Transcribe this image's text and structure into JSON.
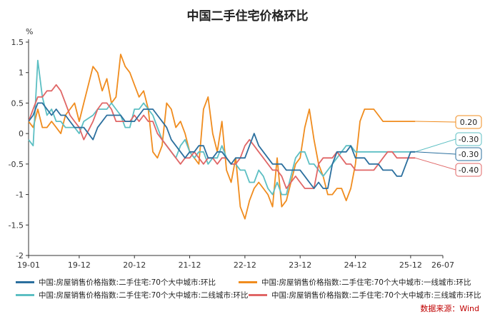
{
  "chart_data": {
    "type": "line",
    "title": "中国二手住宅价格环比",
    "y_unit": "%",
    "ylim": [
      -2,
      1.5
    ],
    "y_ticks": [
      -2,
      -1.5,
      -1,
      -0.5,
      0,
      0.5,
      1,
      1.5
    ],
    "y_tick_labels": [
      "-2",
      "-1.5",
      "-1",
      "-0.5",
      "0",
      "0.5",
      "1",
      "1.5"
    ],
    "x_ticks": [
      "19-01",
      "19-12",
      "20-12",
      "21-12",
      "22-12",
      "23-12",
      "24-12",
      "25-12",
      "26-07"
    ],
    "grid": false,
    "legend_position": "bottom",
    "series": [
      {
        "name": "中国:房屋销售价格指数:二手住宅:70个大中城市:环比",
        "color": "#2b6f9e",
        "end_label": "-0.30",
        "x": [
          "2019-01",
          "2019-02",
          "2019-03",
          "2019-04",
          "2019-05",
          "2019-06",
          "2019-07",
          "2019-08",
          "2019-09",
          "2019-10",
          "2019-11",
          "2019-12",
          "2020-01",
          "2020-03",
          "2020-04",
          "2020-05",
          "2020-06",
          "2020-07",
          "2020-08",
          "2020-09",
          "2020-10",
          "2020-11",
          "2020-12",
          "2021-01",
          "2021-02",
          "2021-03",
          "2021-04",
          "2021-05",
          "2021-06",
          "2021-07",
          "2021-08",
          "2021-09",
          "2021-10",
          "2021-11",
          "2021-12",
          "2022-01",
          "2022-02",
          "2022-03",
          "2022-04",
          "2022-05",
          "2022-06",
          "2022-07",
          "2022-08",
          "2022-09",
          "2022-10",
          "2022-11",
          "2022-12",
          "2023-01",
          "2023-02",
          "2023-03",
          "2023-04",
          "2023-05",
          "2023-06",
          "2023-07",
          "2023-08",
          "2023-09",
          "2023-10",
          "2023-11",
          "2023-12",
          "2024-01",
          "2024-02",
          "2024-03",
          "2024-04",
          "2024-05",
          "2024-06",
          "2024-07",
          "2024-08",
          "2024-09",
          "2024-10",
          "2024-11",
          "2024-12",
          "2025-01",
          "2025-02",
          "2025-03",
          "2025-04",
          "2025-05",
          "2025-06",
          "2025-07",
          "2025-08",
          "2025-09",
          "2025-10",
          "2025-11",
          "2025-12",
          "2026-01"
        ],
        "y": [
          0.2,
          0.3,
          0.5,
          0.5,
          0.4,
          0.3,
          0.4,
          0.3,
          0.3,
          0.2,
          0.1,
          0.1,
          0.1,
          -0.1,
          0.1,
          0.2,
          0.3,
          0.3,
          0.3,
          0.3,
          0.2,
          0.2,
          0.2,
          0.3,
          0.4,
          0.4,
          0.4,
          0.3,
          0.2,
          0.1,
          -0.1,
          -0.2,
          -0.3,
          -0.4,
          -0.3,
          -0.3,
          -0.2,
          -0.2,
          -0.4,
          -0.4,
          -0.3,
          -0.3,
          -0.4,
          -0.5,
          -0.4,
          -0.4,
          -0.4,
          -0.2,
          0.0,
          -0.2,
          -0.3,
          -0.4,
          -0.5,
          -0.5,
          -0.5,
          -0.6,
          -0.6,
          -0.6,
          -0.6,
          -0.7,
          -0.8,
          -0.9,
          -0.8,
          -0.9,
          -0.9,
          -0.5,
          -0.3,
          -0.3,
          -0.3,
          -0.2,
          -0.4,
          -0.4,
          -0.4,
          -0.5,
          -0.5,
          -0.5,
          -0.6,
          -0.6,
          -0.6,
          -0.7,
          -0.7,
          -0.5,
          -0.3,
          -0.3
        ]
      },
      {
        "name": "中国:房屋销售价格指数:二手住宅:70个大中城市:一线城市:环比",
        "color": "#f08c1e",
        "end_label": "0.20",
        "x": [
          "2019-01",
          "2019-02",
          "2019-03",
          "2019-04",
          "2019-05",
          "2019-06",
          "2019-07",
          "2019-08",
          "2019-09",
          "2019-10",
          "2019-11",
          "2019-12",
          "2020-01",
          "2020-03",
          "2020-04",
          "2020-05",
          "2020-06",
          "2020-07",
          "2020-08",
          "2020-09",
          "2020-10",
          "2020-11",
          "2020-12",
          "2021-01",
          "2021-02",
          "2021-03",
          "2021-04",
          "2021-05",
          "2021-06",
          "2021-07",
          "2021-08",
          "2021-09",
          "2021-10",
          "2021-11",
          "2021-12",
          "2022-01",
          "2022-02",
          "2022-03",
          "2022-04",
          "2022-05",
          "2022-06",
          "2022-07",
          "2022-08",
          "2022-09",
          "2022-10",
          "2022-11",
          "2022-12",
          "2023-01",
          "2023-02",
          "2023-03",
          "2023-04",
          "2023-05",
          "2023-06",
          "2023-07",
          "2023-08",
          "2023-09",
          "2023-10",
          "2023-11",
          "2023-12",
          "2024-01",
          "2024-02",
          "2024-03",
          "2024-04",
          "2024-05",
          "2024-06",
          "2024-07",
          "2024-08",
          "2024-09",
          "2024-10",
          "2024-11",
          "2024-12",
          "2025-01",
          "2025-02",
          "2025-03",
          "2025-04",
          "2025-05",
          "2025-06",
          "2025-07",
          "2025-08",
          "2025-09",
          "2025-10",
          "2025-11",
          "2025-12",
          "2026-01"
        ],
        "y": [
          0.2,
          0.1,
          0.4,
          0.1,
          0.1,
          0.2,
          0.1,
          0.0,
          0.3,
          0.4,
          0.5,
          0.2,
          0.5,
          1.1,
          1.0,
          0.7,
          0.9,
          0.5,
          0.6,
          1.3,
          1.1,
          1.0,
          0.8,
          0.6,
          0.7,
          0.4,
          -0.3,
          -0.4,
          -0.2,
          0.5,
          0.4,
          0.1,
          0.2,
          0.0,
          -0.3,
          -0.4,
          -0.5,
          0.4,
          0.6,
          0.0,
          -0.3,
          0.2,
          -0.6,
          -0.8,
          -0.4,
          -1.2,
          -1.4,
          -1.1,
          -0.9,
          -0.8,
          -0.9,
          -1.0,
          -1.2,
          -0.4,
          -1.2,
          -1.1,
          -0.8,
          -0.5,
          -0.4,
          0.1,
          0.4,
          -0.1,
          -0.5,
          -0.7,
          -1.0,
          -1.0,
          -0.9,
          -0.9,
          -1.1,
          -0.9,
          -0.5,
          0.2,
          0.4,
          0.4,
          0.4,
          0.3,
          0.2,
          0.2,
          0.2,
          0.2,
          0.2,
          0.2,
          0.2,
          0.2
        ]
      },
      {
        "name": "中国:房屋销售价格指数:二手住宅:70个大中城市:二线城市:环比",
        "color": "#5cbfc3",
        "end_label": "-0.30",
        "x": [
          "2019-01",
          "2019-02",
          "2019-03",
          "2019-04",
          "2019-05",
          "2019-06",
          "2019-07",
          "2019-08",
          "2019-09",
          "2019-10",
          "2019-11",
          "2019-12",
          "2020-01",
          "2020-03",
          "2020-04",
          "2020-05",
          "2020-06",
          "2020-07",
          "2020-08",
          "2020-09",
          "2020-10",
          "2020-11",
          "2020-12",
          "2021-01",
          "2021-02",
          "2021-03",
          "2021-04",
          "2021-05",
          "2021-06",
          "2021-07",
          "2021-08",
          "2021-09",
          "2021-10",
          "2021-11",
          "2021-12",
          "2022-01",
          "2022-02",
          "2022-03",
          "2022-04",
          "2022-05",
          "2022-06",
          "2022-07",
          "2022-08",
          "2022-09",
          "2022-10",
          "2022-11",
          "2022-12",
          "2023-01",
          "2023-02",
          "2023-03",
          "2023-04",
          "2023-05",
          "2023-06",
          "2023-07",
          "2023-08",
          "2023-09",
          "2023-10",
          "2023-11",
          "2023-12",
          "2024-01",
          "2024-02",
          "2024-03",
          "2024-04",
          "2024-05",
          "2024-06",
          "2024-07",
          "2024-08",
          "2024-09",
          "2024-10",
          "2024-11",
          "2024-12",
          "2025-01",
          "2025-02",
          "2025-03",
          "2025-04",
          "2025-05",
          "2025-06",
          "2025-07",
          "2025-08",
          "2025-09",
          "2025-10",
          "2025-11",
          "2025-12",
          "2026-01"
        ],
        "y": [
          -0.1,
          -0.2,
          1.2,
          0.6,
          0.3,
          0.4,
          0.2,
          0.2,
          0.1,
          0.1,
          0.1,
          0.0,
          0.2,
          0.3,
          0.4,
          0.4,
          0.4,
          0.5,
          0.4,
          0.3,
          0.1,
          0.1,
          0.4,
          0.4,
          0.5,
          0.4,
          0.3,
          0.1,
          -0.1,
          -0.2,
          -0.3,
          -0.4,
          -0.2,
          -0.1,
          -0.3,
          -0.4,
          -0.3,
          -0.3,
          -0.5,
          -0.4,
          -0.4,
          -0.2,
          -0.4,
          -0.5,
          -0.5,
          -0.6,
          -0.6,
          -0.8,
          -0.8,
          -0.6,
          -0.7,
          -0.9,
          -1.0,
          -0.8,
          -1.0,
          -1.0,
          -0.7,
          -0.4,
          -0.3,
          -0.3,
          -0.5,
          -0.5,
          -0.6,
          -0.7,
          -0.6,
          -0.5,
          -0.4,
          -0.3,
          -0.2,
          -0.2,
          -0.3,
          -0.3,
          -0.3,
          -0.3,
          -0.3,
          -0.3,
          -0.3,
          -0.3,
          -0.3,
          -0.3,
          -0.3,
          -0.3,
          -0.3,
          -0.3
        ]
      },
      {
        "name": "中国:房屋销售价格指数:二手住宅:70个大中城市:三线城市:环比",
        "color": "#e06666",
        "end_label": "-0.40",
        "x": [
          "2019-01",
          "2019-02",
          "2019-03",
          "2019-04",
          "2019-05",
          "2019-06",
          "2019-07",
          "2019-08",
          "2019-09",
          "2019-10",
          "2019-11",
          "2019-12",
          "2020-01",
          "2020-03",
          "2020-04",
          "2020-05",
          "2020-06",
          "2020-07",
          "2020-08",
          "2020-09",
          "2020-10",
          "2020-11",
          "2020-12",
          "2021-01",
          "2021-02",
          "2021-03",
          "2021-04",
          "2021-05",
          "2021-06",
          "2021-07",
          "2021-08",
          "2021-09",
          "2021-10",
          "2021-11",
          "2021-12",
          "2022-01",
          "2022-02",
          "2022-03",
          "2022-04",
          "2022-05",
          "2022-06",
          "2022-07",
          "2022-08",
          "2022-09",
          "2022-10",
          "2022-11",
          "2022-12",
          "2023-01",
          "2023-02",
          "2023-03",
          "2023-04",
          "2023-05",
          "2023-06",
          "2023-07",
          "2023-08",
          "2023-09",
          "2023-10",
          "2023-11",
          "2023-12",
          "2024-01",
          "2024-02",
          "2024-03",
          "2024-04",
          "2024-05",
          "2024-06",
          "2024-07",
          "2024-08",
          "2024-09",
          "2024-10",
          "2024-11",
          "2024-12",
          "2025-01",
          "2025-02",
          "2025-03",
          "2025-04",
          "2025-05",
          "2025-06",
          "2025-07",
          "2025-08",
          "2025-09",
          "2025-10",
          "2025-11",
          "2025-12",
          "2026-01"
        ],
        "y": [
          0.2,
          0.4,
          0.6,
          0.6,
          0.7,
          0.7,
          0.8,
          0.7,
          0.5,
          0.3,
          0.2,
          0.1,
          -0.1,
          0.2,
          0.4,
          0.5,
          0.5,
          0.4,
          0.2,
          0.2,
          0.2,
          0.2,
          0.3,
          0.2,
          0.3,
          0.2,
          0.2,
          0.0,
          -0.1,
          -0.2,
          -0.3,
          -0.4,
          -0.5,
          -0.4,
          -0.4,
          -0.3,
          -0.4,
          -0.5,
          -0.4,
          -0.4,
          -0.5,
          -0.4,
          -0.4,
          -0.5,
          -0.5,
          -0.4,
          -0.2,
          -0.1,
          -0.2,
          -0.3,
          -0.4,
          -0.5,
          -0.6,
          -0.6,
          -0.7,
          -0.9,
          -0.8,
          -0.7,
          -0.8,
          -0.9,
          -0.9,
          -0.9,
          -0.5,
          -0.4,
          -0.4,
          -0.4,
          -0.3,
          -0.4,
          -0.5,
          -0.5,
          -0.6,
          -0.6,
          -0.6,
          -0.6,
          -0.6,
          -0.5,
          -0.4,
          -0.3,
          -0.3,
          -0.4,
          -0.4,
          -0.4,
          -0.4,
          -0.4
        ]
      }
    ]
  },
  "source_note": "数据来源：Wind"
}
